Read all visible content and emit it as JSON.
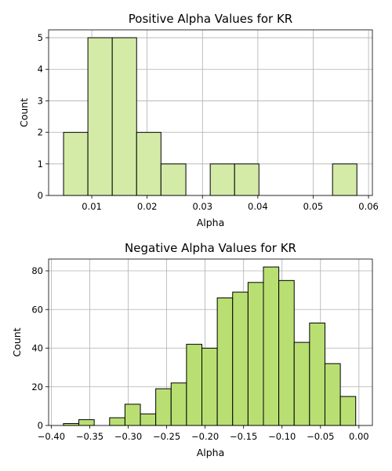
{
  "chart_data": [
    {
      "type": "bar",
      "title": "Positive Alpha Values for KR",
      "xlabel": "Alpha",
      "ylabel": "Count",
      "xlim": [
        0.0022,
        0.0607
      ],
      "ylim": [
        0,
        5.25
      ],
      "xticks": [
        0.01,
        0.02,
        0.03,
        0.04,
        0.05,
        0.06
      ],
      "xtick_labels": [
        "0.01",
        "0.02",
        "0.03",
        "0.04",
        "0.05",
        "0.06"
      ],
      "yticks": [
        0,
        1,
        2,
        3,
        4,
        5
      ],
      "ytick_labels": [
        "0",
        "1",
        "2",
        "3",
        "4",
        "5"
      ],
      "grid": true,
      "color": "#d4eba8",
      "bins": [
        {
          "x0": 0.0049,
          "x1": 0.0093,
          "count": 2
        },
        {
          "x0": 0.0093,
          "x1": 0.0137,
          "count": 5
        },
        {
          "x0": 0.0137,
          "x1": 0.0181,
          "count": 5
        },
        {
          "x0": 0.0181,
          "x1": 0.0225,
          "count": 2
        },
        {
          "x0": 0.0225,
          "x1": 0.027,
          "count": 1
        },
        {
          "x0": 0.0314,
          "x1": 0.0358,
          "count": 1
        },
        {
          "x0": 0.0358,
          "x1": 0.0402,
          "count": 1
        },
        {
          "x0": 0.0535,
          "x1": 0.0579,
          "count": 1
        }
      ]
    },
    {
      "type": "bar",
      "title": "Negative Alpha Values for KR",
      "xlabel": "Alpha",
      "ylabel": "Count",
      "xlim": [
        -0.4035,
        0.0175
      ],
      "ylim": [
        0,
        86.1
      ],
      "xticks": [
        -0.4,
        -0.35,
        -0.3,
        -0.25,
        -0.2,
        -0.15,
        -0.1,
        -0.05,
        0.0
      ],
      "xtick_labels": [
        "−0.40",
        "−0.35",
        "−0.30",
        "−0.25",
        "−0.20",
        "−0.15",
        "−0.10",
        "−0.05",
        "0.00"
      ],
      "yticks": [
        0,
        20,
        40,
        60,
        80
      ],
      "ytick_labels": [
        "0",
        "20",
        "40",
        "60",
        "80"
      ],
      "grid": true,
      "color": "#b9df73",
      "bins": [
        {
          "x0": -0.3842,
          "x1": -0.3642,
          "count": 1
        },
        {
          "x0": -0.3642,
          "x1": -0.3442,
          "count": 3
        },
        {
          "x0": -0.3442,
          "x1": -0.3242,
          "count": 0
        },
        {
          "x0": -0.3242,
          "x1": -0.3042,
          "count": 4
        },
        {
          "x0": -0.3042,
          "x1": -0.2842,
          "count": 11
        },
        {
          "x0": -0.2842,
          "x1": -0.2642,
          "count": 6
        },
        {
          "x0": -0.2642,
          "x1": -0.2442,
          "count": 19
        },
        {
          "x0": -0.2442,
          "x1": -0.2242,
          "count": 22
        },
        {
          "x0": -0.2242,
          "x1": -0.2042,
          "count": 42
        },
        {
          "x0": -0.2042,
          "x1": -0.1842,
          "count": 40
        },
        {
          "x0": -0.1842,
          "x1": -0.1642,
          "count": 66
        },
        {
          "x0": -0.1642,
          "x1": -0.1442,
          "count": 69
        },
        {
          "x0": -0.1442,
          "x1": -0.1242,
          "count": 74
        },
        {
          "x0": -0.1242,
          "x1": -0.1042,
          "count": 82
        },
        {
          "x0": -0.1042,
          "x1": -0.0842,
          "count": 75
        },
        {
          "x0": -0.0842,
          "x1": -0.0642,
          "count": 43
        },
        {
          "x0": -0.0642,
          "x1": -0.0442,
          "count": 53
        },
        {
          "x0": -0.0442,
          "x1": -0.0242,
          "count": 32
        },
        {
          "x0": -0.0242,
          "x1": -0.0042,
          "count": 15
        }
      ]
    }
  ]
}
